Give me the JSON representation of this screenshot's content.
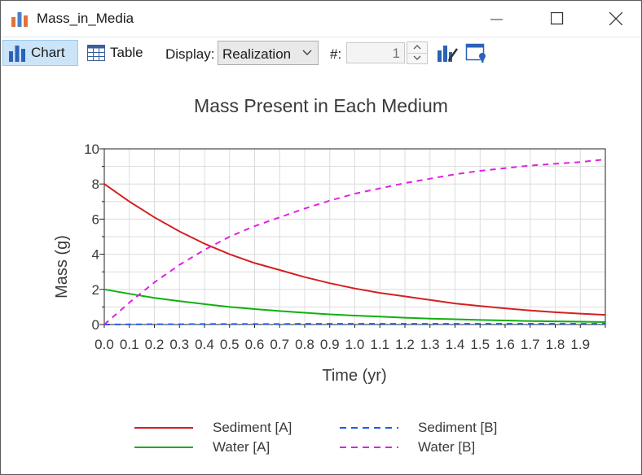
{
  "window": {
    "title": "Mass_in_Media",
    "icons": {
      "app": "bar-chart-app-icon",
      "minimize": "minimize-icon",
      "maximize": "maximize-icon",
      "close": "close-icon"
    }
  },
  "toolbar": {
    "chart_label": "Chart",
    "table_label": "Table",
    "display_label": "Display:",
    "display_value": "Realization",
    "number_label": "#:",
    "number_value": "1",
    "icons": {
      "chart": "bar-chart-icon",
      "table": "table-icon",
      "chart_props": "chart-properties-icon",
      "window_props": "window-properties-icon"
    }
  },
  "chart_data": {
    "type": "line",
    "title": "Mass Present in Each Medium",
    "xlabel": "Time (yr)",
    "ylabel": "Mass (g)",
    "xlim": [
      0,
      2.0
    ],
    "ylim": [
      0,
      10
    ],
    "grid": true,
    "legend_position": "bottom",
    "x_ticks": [
      "0.0",
      "0.1",
      "0.2",
      "0.3",
      "0.4",
      "0.5",
      "0.6",
      "0.7",
      "0.8",
      "0.9",
      "1.0",
      "1.1",
      "1.2",
      "1.3",
      "1.4",
      "1.5",
      "1.6",
      "1.7",
      "1.8",
      "1.9"
    ],
    "y_ticks": [
      "0",
      "2",
      "4",
      "6",
      "8",
      "10"
    ],
    "x": [
      0.0,
      0.1,
      0.2,
      0.3,
      0.4,
      0.5,
      0.6,
      0.7,
      0.8,
      0.9,
      1.0,
      1.1,
      1.2,
      1.3,
      1.4,
      1.5,
      1.6,
      1.7,
      1.8,
      1.9,
      2.0
    ],
    "series": [
      {
        "name": "Sediment [A]",
        "color": "#d42020",
        "dash": false,
        "values": [
          8.0,
          7.0,
          6.1,
          5.3,
          4.6,
          4.0,
          3.5,
          3.1,
          2.7,
          2.35,
          2.05,
          1.8,
          1.6,
          1.4,
          1.2,
          1.05,
          0.92,
          0.8,
          0.7,
          0.62,
          0.55
        ]
      },
      {
        "name": "Water [A]",
        "color": "#10b010",
        "dash": false,
        "values": [
          2.0,
          1.75,
          1.52,
          1.33,
          1.16,
          1.0,
          0.88,
          0.77,
          0.67,
          0.58,
          0.51,
          0.45,
          0.39,
          0.34,
          0.3,
          0.26,
          0.23,
          0.2,
          0.18,
          0.16,
          0.14
        ]
      },
      {
        "name": "Sediment [B]",
        "color": "#1a5cf0",
        "dash": true,
        "values": [
          0.0,
          0.01,
          0.02,
          0.02,
          0.03,
          0.03,
          0.03,
          0.03,
          0.04,
          0.04,
          0.04,
          0.04,
          0.04,
          0.04,
          0.04,
          0.04,
          0.04,
          0.04,
          0.04,
          0.04,
          0.04
        ]
      },
      {
        "name": "Water [B]",
        "color": "#e020e0",
        "dash": true,
        "values": [
          0.0,
          1.25,
          2.4,
          3.4,
          4.25,
          5.0,
          5.6,
          6.1,
          6.6,
          7.05,
          7.45,
          7.75,
          8.05,
          8.3,
          8.55,
          8.75,
          8.9,
          9.05,
          9.15,
          9.25,
          9.4
        ]
      }
    ]
  }
}
